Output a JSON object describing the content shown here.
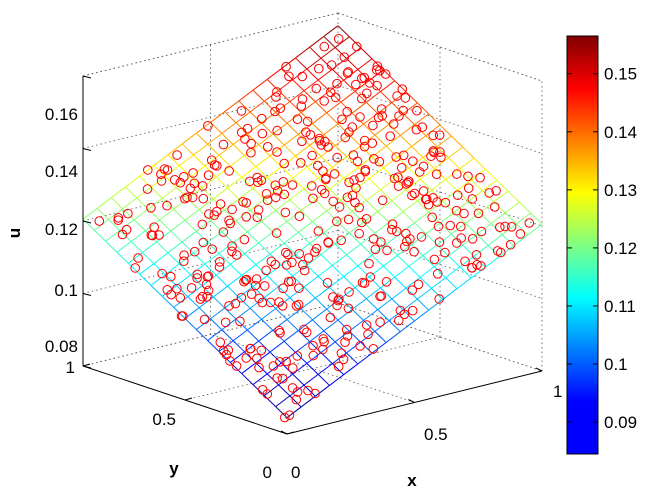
{
  "chart_data": {
    "type": "surface",
    "title": "",
    "xlabel": "x",
    "ylabel": "y",
    "zlabel": "u",
    "x_range": [
      0,
      1
    ],
    "y_range": [
      0,
      1
    ],
    "z_range": [
      0.08,
      0.16
    ],
    "x_ticks": [
      "0",
      "0.5",
      "1"
    ],
    "y_ticks": [
      "0",
      "0.5",
      "1"
    ],
    "z_ticks": [
      "0.08",
      "0.1",
      "0.12",
      "0.14",
      "0.16"
    ],
    "colorbar_ticks": [
      "0.09",
      "0.1",
      "0.11",
      "0.12",
      "0.13",
      "0.14",
      "0.15"
    ],
    "colorbar_range": [
      0.0845,
      0.1565
    ],
    "colormap": "jet",
    "grid_size": 18,
    "surface_function": "u ≈ 0.0845 + 0.072·(x + y)/2",
    "marker_color": "#ff0000",
    "marker_style": "circle",
    "marker_count": 400,
    "grid": true
  }
}
